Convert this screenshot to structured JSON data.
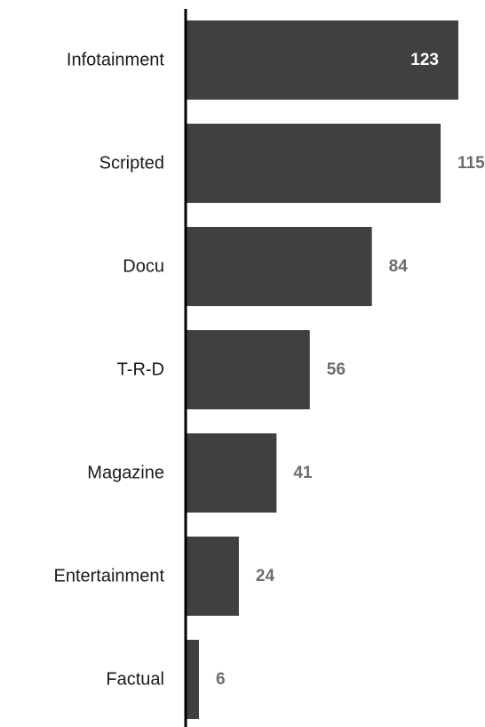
{
  "chart_data": {
    "type": "bar",
    "orientation": "horizontal",
    "categories": [
      "Infotainment",
      "Scripted",
      "Docu",
      "T-R-D",
      "Magazine",
      "Entertainment",
      "Factual"
    ],
    "values": [
      123,
      115,
      84,
      56,
      41,
      24,
      6
    ],
    "xlim": [
      0,
      123
    ],
    "grid": false,
    "legend": "none",
    "title": "",
    "xlabel": "",
    "ylabel": "",
    "colors": {
      "bar": "#404040",
      "axis": "#000000",
      "label_outside": "#6d6d6d",
      "label_inside": "#ffffff"
    }
  }
}
